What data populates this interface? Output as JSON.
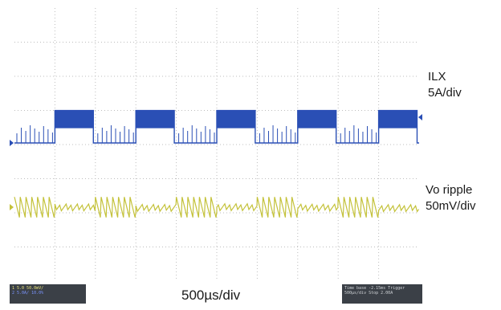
{
  "chart_data": {
    "type": "line",
    "title": "",
    "xlabel": "500µs/div",
    "x_divisions": 10,
    "y_divisions": 8,
    "grid": true,
    "series": [
      {
        "name": "ILX",
        "scale": "5A/div",
        "color": "#2a4fb5",
        "waveform": "pulse",
        "period_div": 2.0,
        "high_duration_div": 0.95,
        "first_rise_div": 1.0,
        "high_level_div": 0.95,
        "low_level_div": 0.0,
        "has_fuzz_on_high": true
      },
      {
        "name": "Vo ripple",
        "scale": "50mV/div",
        "color": "#c4c23a",
        "waveform": "sawtooth-ripple",
        "period_div": 2.0,
        "high_duration_div": 1.0,
        "sawtooth_amplitude_div": 0.6,
        "flat_noise_div": 0.1
      }
    ]
  },
  "labels": {
    "ilx_name": "ILX",
    "ilx_scale": "5A/div",
    "vo_name": "Vo ripple",
    "vo_scale": "50mV/div",
    "timebase": "500µs/div"
  },
  "status_panels": {
    "channel": {
      "ch1": "1  5.0  50.0mV/",
      "ch2": "2  5.0A/  10.0%"
    },
    "timebase": {
      "line1": "Time base  -2.15ms  Trigger",
      "line2": "500µs/div  Stop  2.00A"
    },
    "colors": {
      "background": "#3b4047",
      "text": "#cfd2d6"
    }
  }
}
